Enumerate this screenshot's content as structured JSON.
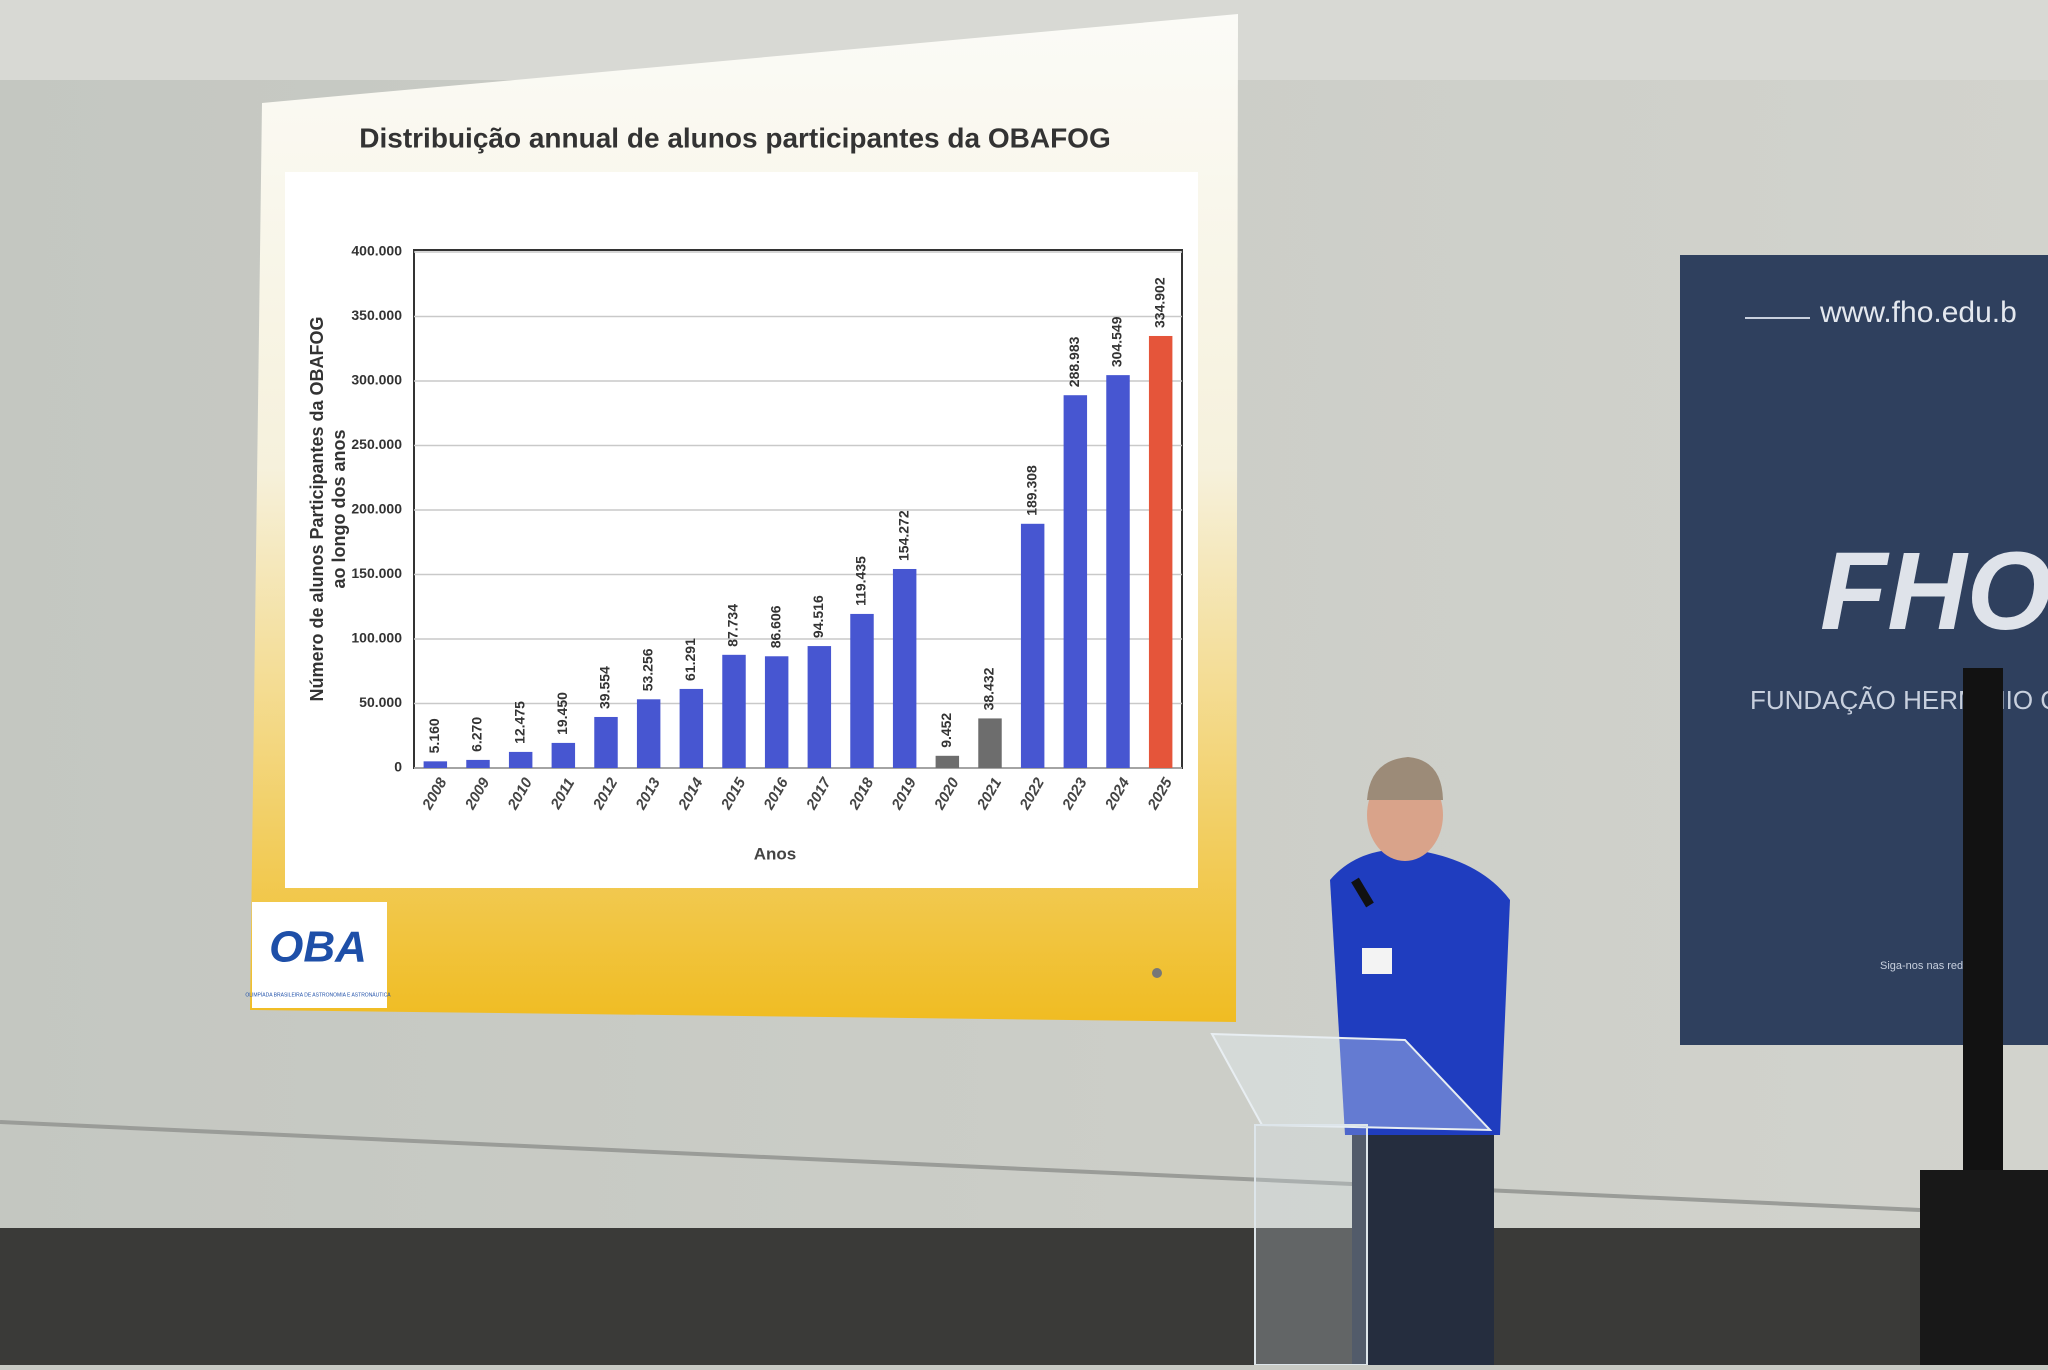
{
  "chart_data": {
    "type": "bar",
    "title": "Distribuição annual de alunos participantes da OBAFOG",
    "ylabel": [
      "Número de alunos Participantes da OBAFOG",
      "ao longo dos anos"
    ],
    "xlabel": "Anos",
    "categories": [
      "2008",
      "2009",
      "2010",
      "2011",
      "2012",
      "2013",
      "2014",
      "2015",
      "2016",
      "2017",
      "2018",
      "2019",
      "2020",
      "2021",
      "2022",
      "2023",
      "2024",
      "2025"
    ],
    "values": [
      5160,
      6270,
      12475,
      19450,
      39554,
      53256,
      61291,
      87734,
      86606,
      94516,
      119435,
      154272,
      9452,
      38432,
      189308,
      288983,
      304549,
      334902
    ],
    "value_labels": [
      "5.160",
      "6.270",
      "12.475",
      "19.450",
      "39.554",
      "53.256",
      "61.291",
      "87.734",
      "86.606",
      "94.516",
      "119.435",
      "154.272",
      "9.452",
      "38.432",
      "189.308",
      "288.983",
      "304.549",
      "334.902"
    ],
    "colors": [
      "#4756d1",
      "#4756d1",
      "#4756d1",
      "#4756d1",
      "#4756d1",
      "#4756d1",
      "#4756d1",
      "#4756d1",
      "#4756d1",
      "#4756d1",
      "#4756d1",
      "#4756d1",
      "#6d6d6d",
      "#6d6d6d",
      "#4756d1",
      "#4756d1",
      "#4756d1",
      "#e5553a"
    ],
    "ylim": [
      0,
      400000
    ],
    "yticks": [
      0,
      {
        "value": 50000,
        "label": "50.000"
      },
      {
        "value": 100000,
        "label": "100.000"
      },
      {
        "value": 150000,
        "label": "150.000"
      },
      {
        "value": 200000,
        "label": "200.000"
      },
      {
        "value": 250000,
        "label": "250.000"
      },
      {
        "value": 300000,
        "label": "300.000"
      },
      {
        "value": 350000,
        "label": "350.000"
      },
      {
        "value": 400000,
        "label": "400.000"
      }
    ],
    "grid": true
  },
  "scene": {
    "logo": "OBA",
    "logo_caption": "OLIMPÍADA BRASILEIRA DE ASTRONOMIA E ASTRONÁUTICA",
    "banner_url": "www.fho.edu.b",
    "banner_brand": "FHO",
    "banner_name": "FUNDAÇÃO HERMÍNIO O",
    "banner_follow": "Siga-nos nas redes"
  }
}
